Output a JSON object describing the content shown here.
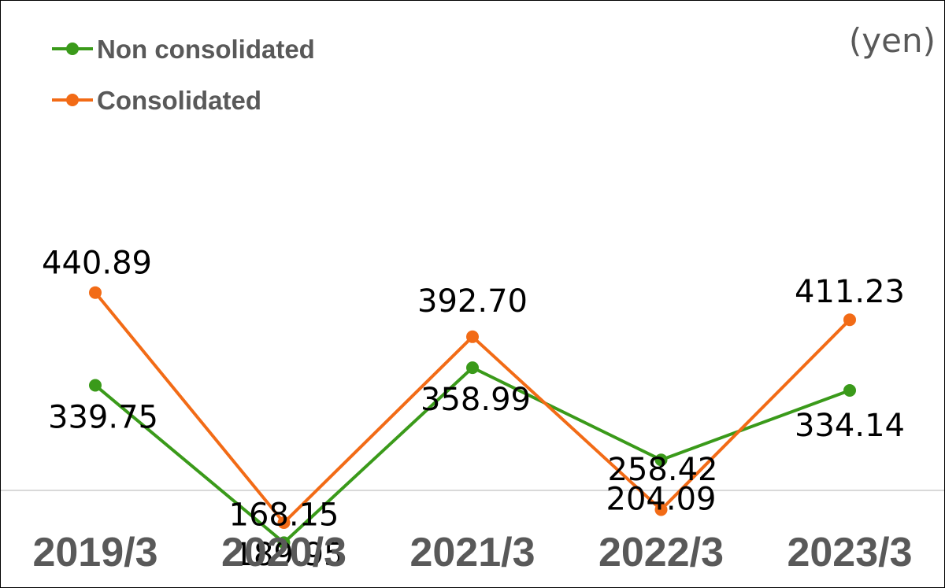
{
  "chart_data": {
    "type": "line",
    "unit_label": "(yen)",
    "categories": [
      "2019/3",
      "2020/3",
      "2021/3",
      "2022/3",
      "2023/3"
    ],
    "series": [
      {
        "name": "Non consolidated",
        "color": "#3a9a1a",
        "values": [
          339.75,
          168.15,
          358.99,
          258.42,
          334.14
        ],
        "labels": [
          "339.75",
          "168.15",
          "358.99",
          "258.42",
          "334.14"
        ]
      },
      {
        "name": "Consolidated",
        "color": "#f26b16",
        "values": [
          440.89,
          189.95,
          392.7,
          204.09,
          411.23
        ],
        "labels": [
          "440.89",
          "189.95",
          "392.70",
          "204.09",
          "411.23"
        ]
      }
    ],
    "legend_position": "top-left",
    "grid": false
  }
}
